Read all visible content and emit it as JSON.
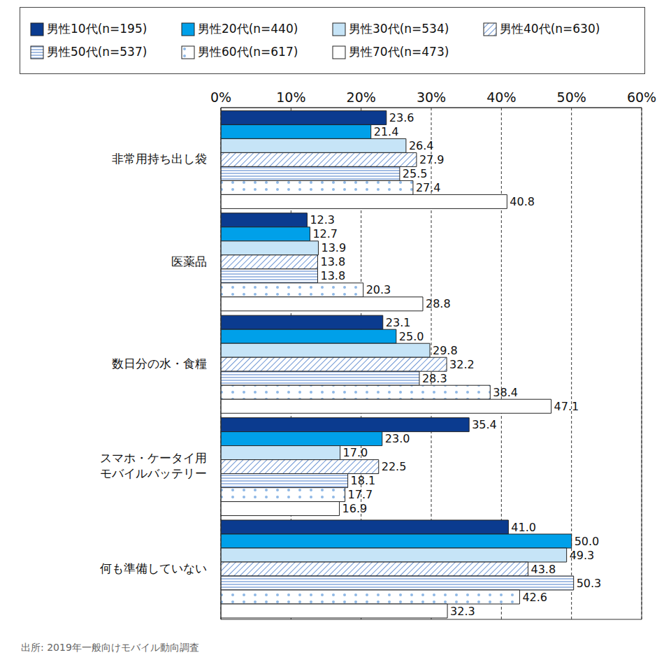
{
  "chart_data": {
    "type": "bar",
    "orientation": "horizontal",
    "grid": true,
    "data_labels": true,
    "legend": "top",
    "categories": [
      "非常用持ち出し袋",
      "医薬品",
      "数日分の水・食糧",
      "スマホ・ケータイ用\nモバイルバッテリー",
      "何も準備していない"
    ],
    "xlim": [
      0,
      60
    ],
    "xticks": [
      {
        "value": 0,
        "label": "0%"
      },
      {
        "value": 10,
        "label": "10%"
      },
      {
        "value": 20,
        "label": "20%"
      },
      {
        "value": 30,
        "label": "30%"
      },
      {
        "value": 40,
        "label": "40%"
      },
      {
        "value": 50,
        "label": "50%"
      },
      {
        "value": 60,
        "label": "60%"
      }
    ],
    "series": [
      {
        "name": "男性10代(n=195)",
        "color": "#0b3b8f",
        "values": [
          23.6,
          12.3,
          23.1,
          35.4,
          41.0
        ],
        "value_labels": [
          "23.6",
          "12.3",
          "23.1",
          "35.4",
          "41.0"
        ]
      },
      {
        "name": "男性20代(n=440)",
        "color": "#00a0e9",
        "values": [
          21.4,
          12.7,
          25.0,
          23.0,
          50.0
        ],
        "value_labels": [
          "21.4",
          "12.7",
          "25.0",
          "23.0",
          "50.0"
        ]
      },
      {
        "name": "男性30代(n=534)",
        "color": "#c6e4f7",
        "values": [
          26.4,
          13.9,
          29.8,
          17.0,
          49.3
        ],
        "value_labels": [
          "26.4",
          "13.9",
          "29.8",
          "17.0",
          "49.3"
        ]
      },
      {
        "name": "男性40代(n=630)",
        "color": "#4a7cc9",
        "values": [
          27.9,
          13.8,
          32.2,
          22.5,
          43.8
        ],
        "value_labels": [
          "27.9",
          "13.8",
          "32.2",
          "22.5",
          "43.8"
        ]
      },
      {
        "name": "男性50代(n=537)",
        "color": "#4a7cc9",
        "values": [
          25.5,
          13.8,
          28.3,
          18.1,
          50.3
        ],
        "value_labels": [
          "25.5",
          "13.8",
          "28.3",
          "18.1",
          "50.3"
        ]
      },
      {
        "name": "男性60代(n=617)",
        "color": "#8fb8e6",
        "values": [
          27.4,
          20.3,
          38.4,
          17.7,
          42.6
        ],
        "value_labels": [
          "27.4",
          "20.3",
          "38.4",
          "17.7",
          "42.6"
        ]
      },
      {
        "name": "男性70代(n=473)",
        "color": "#ffffff",
        "values": [
          40.8,
          28.8,
          47.1,
          16.9,
          32.3
        ],
        "value_labels": [
          "40.8",
          "28.8",
          "47.1",
          "16.9",
          "32.3"
        ]
      }
    ],
    "source": "出所: 2019年一般向けモバイル動向調査"
  }
}
